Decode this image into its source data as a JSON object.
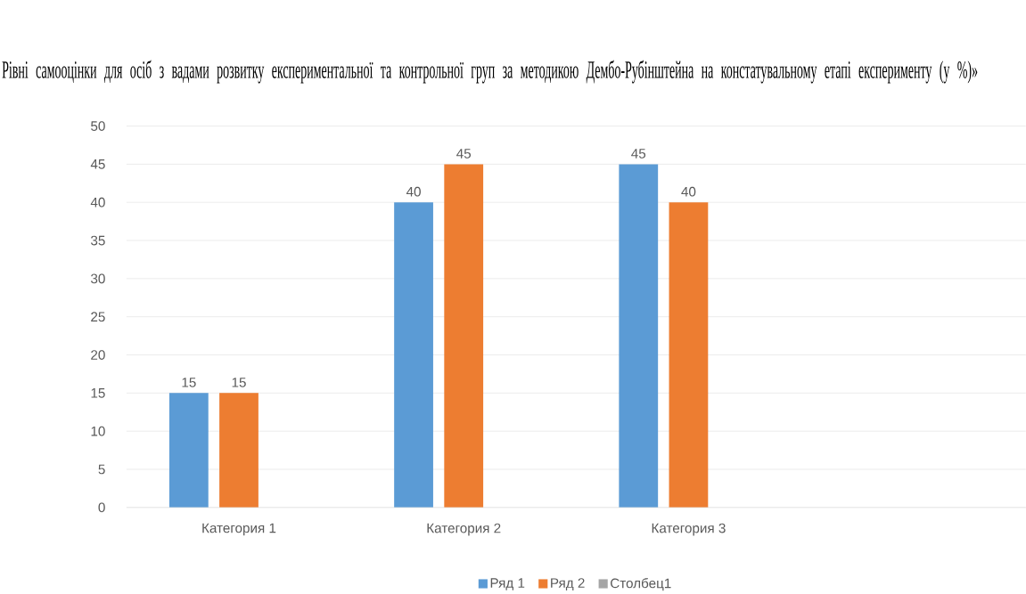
{
  "chart_data": {
    "type": "bar",
    "title": "Рівні самооцінки для осіб з вадами розвитку експериментальної та контрольної груп за методикою Дембо-Рубінштейна на констатувальному етапі експерименту (у %)»",
    "categories": [
      "Категория 1",
      "Категория 2",
      "Категория 3",
      null
    ],
    "series": [
      {
        "name": "Ряд 1",
        "color": "#5b9bd5",
        "values": [
          15,
          40,
          45,
          null
        ]
      },
      {
        "name": "Ряд 2",
        "color": "#ed7d31",
        "values": [
          15,
          45,
          40,
          null
        ]
      },
      {
        "name": "Столбец1",
        "color": "#a5a5a5",
        "values": [
          null,
          null,
          null,
          null
        ]
      }
    ],
    "ylim": [
      0,
      50
    ],
    "yticks": [
      0,
      5,
      10,
      15,
      20,
      25,
      30,
      35,
      40,
      45,
      50
    ],
    "grid": "y",
    "legend": "bottom",
    "data_labels": true
  }
}
